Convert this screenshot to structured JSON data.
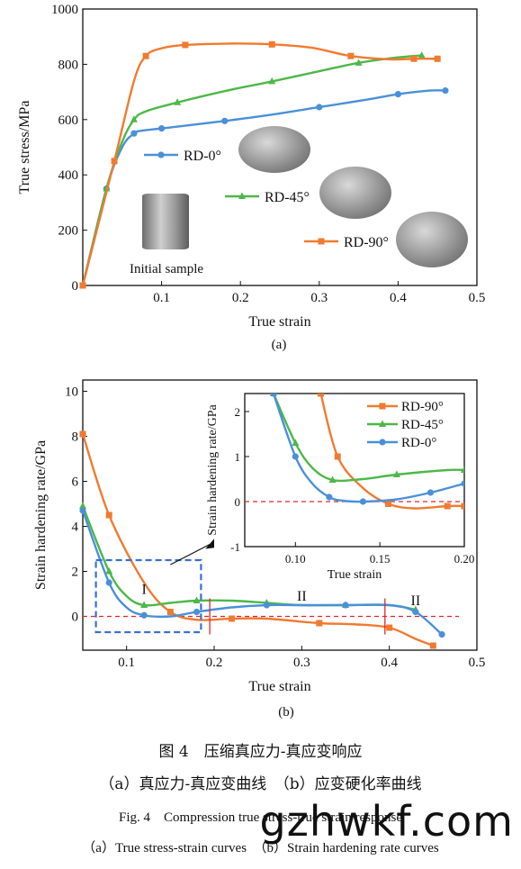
{
  "chart_data": [
    {
      "type": "line",
      "panel_label": "(a)",
      "xlabel": "True strain",
      "ylabel": "True stress/MPa",
      "xlim": [
        0,
        0.5
      ],
      "ylim": [
        0,
        1000
      ],
      "x_ticks": [
        "0.1",
        "0.2",
        "0.3",
        "0.4",
        "0.5"
      ],
      "y_ticks": [
        "0",
        "200",
        "400",
        "600",
        "800",
        "1000"
      ],
      "legend_placement": "inside-middle",
      "series": [
        {
          "name": "RD-0°",
          "color": "#4a90d9",
          "marker": "circle",
          "x": [
            0,
            0.03,
            0.05,
            0.065,
            0.075,
            0.1,
            0.13,
            0.18,
            0.24,
            0.3,
            0.36,
            0.4,
            0.44,
            0.46
          ],
          "y": [
            0,
            350,
            500,
            550,
            560,
            568,
            578,
            595,
            618,
            645,
            672,
            692,
            705,
            705
          ]
        },
        {
          "name": "RD-45°",
          "color": "#4cb848",
          "marker": "triangle",
          "x": [
            0,
            0.03,
            0.05,
            0.065,
            0.08,
            0.12,
            0.18,
            0.24,
            0.3,
            0.35,
            0.4,
            0.43
          ],
          "y": [
            0,
            350,
            520,
            600,
            630,
            662,
            703,
            738,
            775,
            805,
            825,
            832
          ]
        },
        {
          "name": "RD-90°",
          "color": "#f07a30",
          "marker": "square",
          "x": [
            0,
            0.04,
            0.065,
            0.08,
            0.1,
            0.13,
            0.19,
            0.24,
            0.29,
            0.34,
            0.39,
            0.42,
            0.45
          ],
          "y": [
            0,
            450,
            740,
            830,
            858,
            870,
            875,
            872,
            860,
            830,
            818,
            820,
            820
          ]
        }
      ],
      "annotations": [
        "Initial sample"
      ]
    },
    {
      "type": "line",
      "panel_label": "(b)",
      "xlabel": "True strain",
      "ylabel": "Strain hardening rate/GPa",
      "xlim": [
        0.05,
        0.5
      ],
      "ylim": [
        -1.5,
        10.5
      ],
      "x_ticks": [
        "0.1",
        "0.2",
        "0.3",
        "0.4",
        "0.5"
      ],
      "y_ticks": [
        "0",
        "2",
        "4",
        "6",
        "8",
        "10"
      ],
      "stage_labels": [
        "I",
        "II",
        "II"
      ],
      "series": [
        {
          "name": "RD-90°",
          "color": "#f07a30",
          "marker": "square",
          "x": [
            0.05,
            0.08,
            0.12,
            0.15,
            0.18,
            0.22,
            0.26,
            0.32,
            0.36,
            0.4,
            0.43,
            0.45
          ],
          "y": [
            8.1,
            4.5,
            1.5,
            0.2,
            -0.15,
            -0.1,
            -0.1,
            -0.3,
            -0.35,
            -0.5,
            -1.0,
            -1.3
          ]
        },
        {
          "name": "RD-45°",
          "color": "#4cb848",
          "marker": "triangle",
          "x": [
            0.05,
            0.08,
            0.1,
            0.12,
            0.15,
            0.18,
            0.22,
            0.26,
            0.3,
            0.35,
            0.4,
            0.43
          ],
          "y": [
            4.9,
            2.0,
            0.9,
            0.5,
            0.6,
            0.7,
            0.7,
            0.6,
            0.5,
            0.5,
            0.5,
            0.3
          ]
        },
        {
          "name": "RD-0°",
          "color": "#4a90d9",
          "marker": "circle",
          "x": [
            0.05,
            0.08,
            0.1,
            0.12,
            0.15,
            0.18,
            0.22,
            0.26,
            0.3,
            0.35,
            0.4,
            0.43,
            0.46
          ],
          "y": [
            4.7,
            1.5,
            0.4,
            0.05,
            0.0,
            0.2,
            0.4,
            0.5,
            0.5,
            0.5,
            0.5,
            0.2,
            -0.8
          ]
        }
      ],
      "inset": {
        "xlabel": "True strain",
        "ylabel": "Strain hardening rate/GPa",
        "xlim": [
          0.07,
          0.2
        ],
        "ylim": [
          -1,
          2.4
        ],
        "x_ticks": [
          "0.10",
          "0.15",
          "0.20"
        ],
        "y_ticks": [
          "-1",
          "0",
          "1",
          "2"
        ],
        "series": [
          {
            "name": "RD-90°",
            "color": "#f07a30",
            "marker": "square",
            "x": [
              0.115,
              0.125,
              0.14,
              0.155,
              0.17,
              0.19,
              0.2
            ],
            "y": [
              2.4,
              1.0,
              0.3,
              -0.05,
              -0.15,
              -0.1,
              -0.1
            ]
          },
          {
            "name": "RD-45°",
            "color": "#4cb848",
            "marker": "triangle",
            "x": [
              0.087,
              0.1,
              0.11,
              0.122,
              0.14,
              0.16,
              0.19,
              0.2
            ],
            "y": [
              2.4,
              1.3,
              0.75,
              0.48,
              0.5,
              0.6,
              0.7,
              0.7
            ]
          },
          {
            "name": "RD-0°",
            "color": "#4a90d9",
            "marker": "circle",
            "x": [
              0.087,
              0.1,
              0.11,
              0.12,
              0.128,
              0.14,
              0.16,
              0.18,
              0.2
            ],
            "y": [
              2.4,
              1.0,
              0.4,
              0.1,
              0.02,
              0.0,
              0.05,
              0.2,
              0.4
            ]
          }
        ]
      }
    }
  ],
  "captions": {
    "cn_title": "图 4　压缩真应力-真应变响应",
    "cn_sub": "（a）真应力-真应变曲线　（b）应变硬化率曲线",
    "en_title": "Fig. 4　Compression true stress-true strain response",
    "en_sub": "（a）True stress-strain curves　（b）Strain hardening rate curves"
  },
  "watermark": "gzhwkf.com"
}
